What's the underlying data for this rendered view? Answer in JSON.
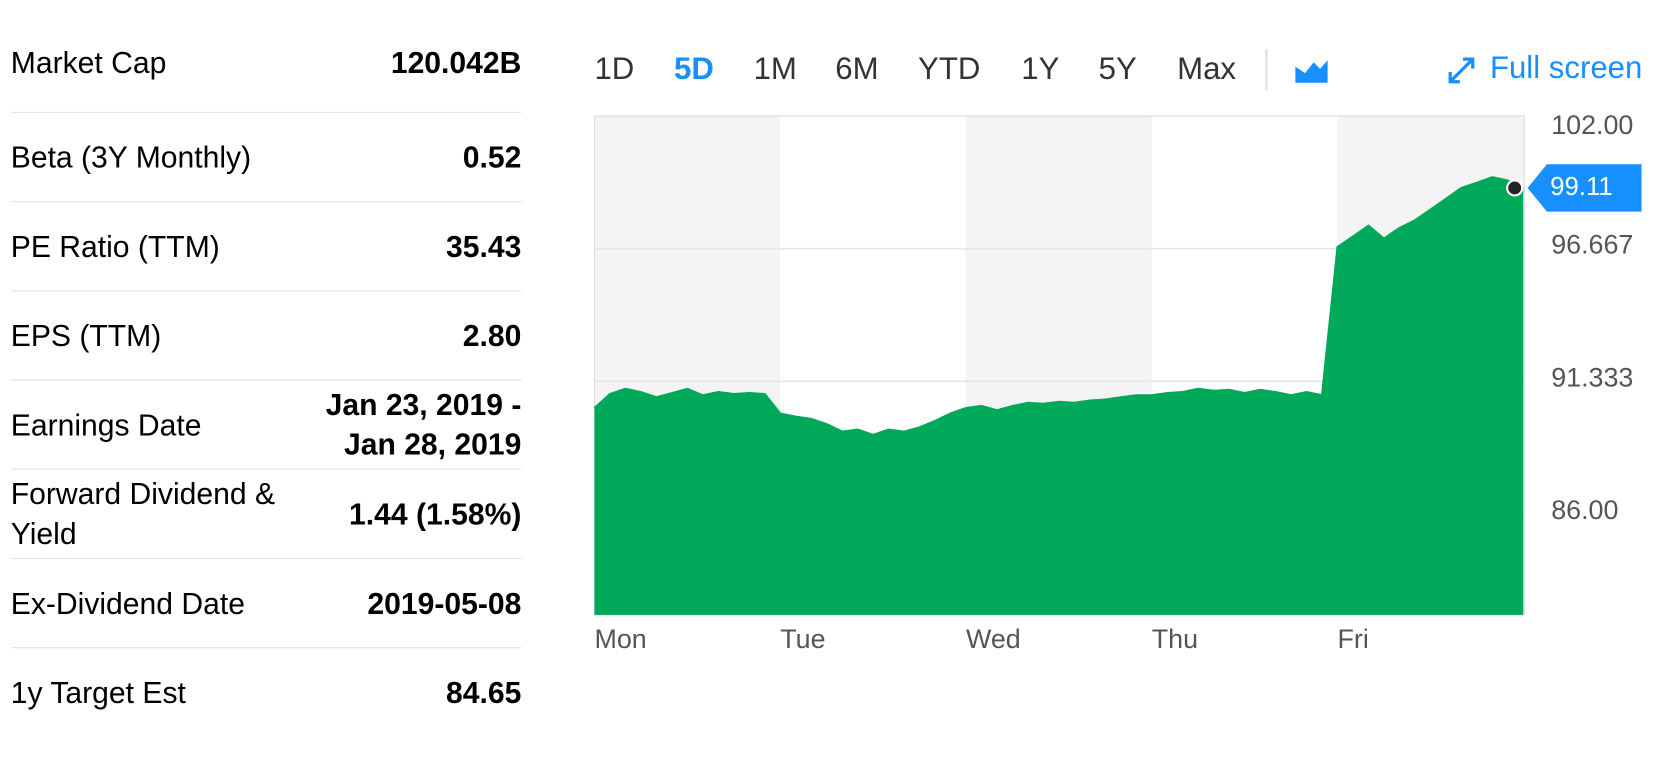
{
  "stats": {
    "rows": [
      {
        "label": "Market Cap",
        "value": "120.042B"
      },
      {
        "label": "Beta (3Y Monthly)",
        "value": "0.52"
      },
      {
        "label": "PE Ratio (TTM)",
        "value": "35.43"
      },
      {
        "label": "EPS (TTM)",
        "value": "2.80"
      },
      {
        "label": "Earnings Date",
        "value": "Jan 23, 2019 - Jan 28, 2019"
      },
      {
        "label": "Forward Dividend & Yield",
        "value": "1.44 (1.58%)"
      },
      {
        "label": "Ex-Dividend Date",
        "value": "2019-05-08"
      },
      {
        "label": "1y Target Est",
        "value": "84.65"
      }
    ]
  },
  "toolbar": {
    "ranges": [
      "1D",
      "5D",
      "1M",
      "6M",
      "YTD",
      "1Y",
      "5Y",
      "Max"
    ],
    "active_range": 1,
    "full_screen": "Full screen"
  },
  "chart_data": {
    "type": "area",
    "categories": [
      "Mon",
      null,
      null,
      null,
      null,
      null,
      null,
      null,
      null,
      null,
      null,
      null,
      "Tue",
      null,
      null,
      null,
      null,
      null,
      null,
      null,
      null,
      null,
      null,
      null,
      "Wed",
      null,
      null,
      null,
      null,
      null,
      null,
      null,
      null,
      null,
      null,
      null,
      "Thu",
      null,
      null,
      null,
      null,
      null,
      null,
      null,
      null,
      null,
      null,
      null,
      "Fri",
      null,
      null,
      null,
      null,
      null,
      null,
      null,
      null,
      null,
      null,
      null,
      null
    ],
    "values": [
      90.26,
      90.82,
      91.03,
      90.9,
      90.69,
      90.86,
      91.03,
      90.77,
      90.9,
      90.82,
      90.86,
      90.82,
      90.04,
      89.91,
      89.82,
      89.61,
      89.31,
      89.39,
      89.18,
      89.39,
      89.31,
      89.48,
      89.74,
      90.04,
      90.26,
      90.34,
      90.17,
      90.34,
      90.47,
      90.43,
      90.51,
      90.47,
      90.56,
      90.6,
      90.69,
      90.77,
      90.77,
      90.86,
      90.9,
      91.03,
      90.95,
      90.99,
      90.86,
      90.99,
      90.9,
      90.77,
      90.9,
      90.77,
      96.73,
      97.16,
      97.59,
      97.07,
      97.5,
      97.81,
      98.24,
      98.67,
      99.11,
      99.32,
      99.54,
      99.41,
      99.11
    ],
    "color": "#00a85a",
    "ylim": [
      81.94,
      102
    ],
    "yticks": [
      {
        "value": 102,
        "label": "102.00"
      },
      96.667,
      91.333,
      {
        "value": 86,
        "label": "86.00"
      }
    ],
    "grid": true
  }
}
